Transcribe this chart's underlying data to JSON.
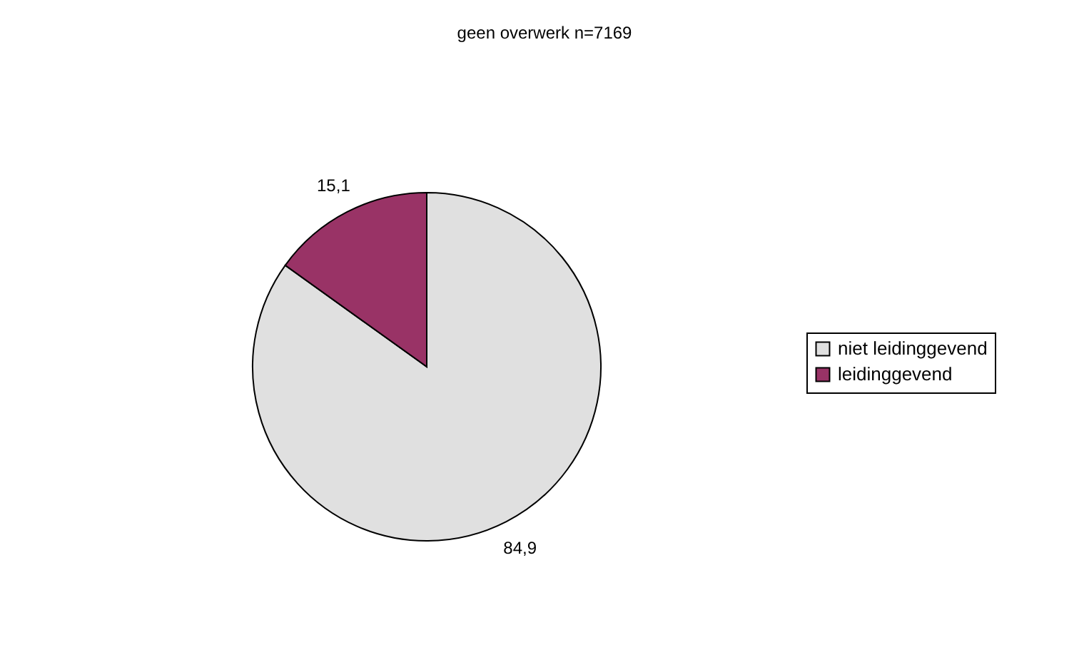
{
  "chart_data": {
    "type": "pie",
    "title": "geen overwerk n=7169",
    "categories": [
      "niet leidinggevend",
      "leidinggevend"
    ],
    "values": [
      84.9,
      15.1
    ],
    "colors": [
      "#e0e0e0",
      "#993366"
    ],
    "value_labels": [
      "84,9",
      "15,1"
    ],
    "legend": "right"
  }
}
